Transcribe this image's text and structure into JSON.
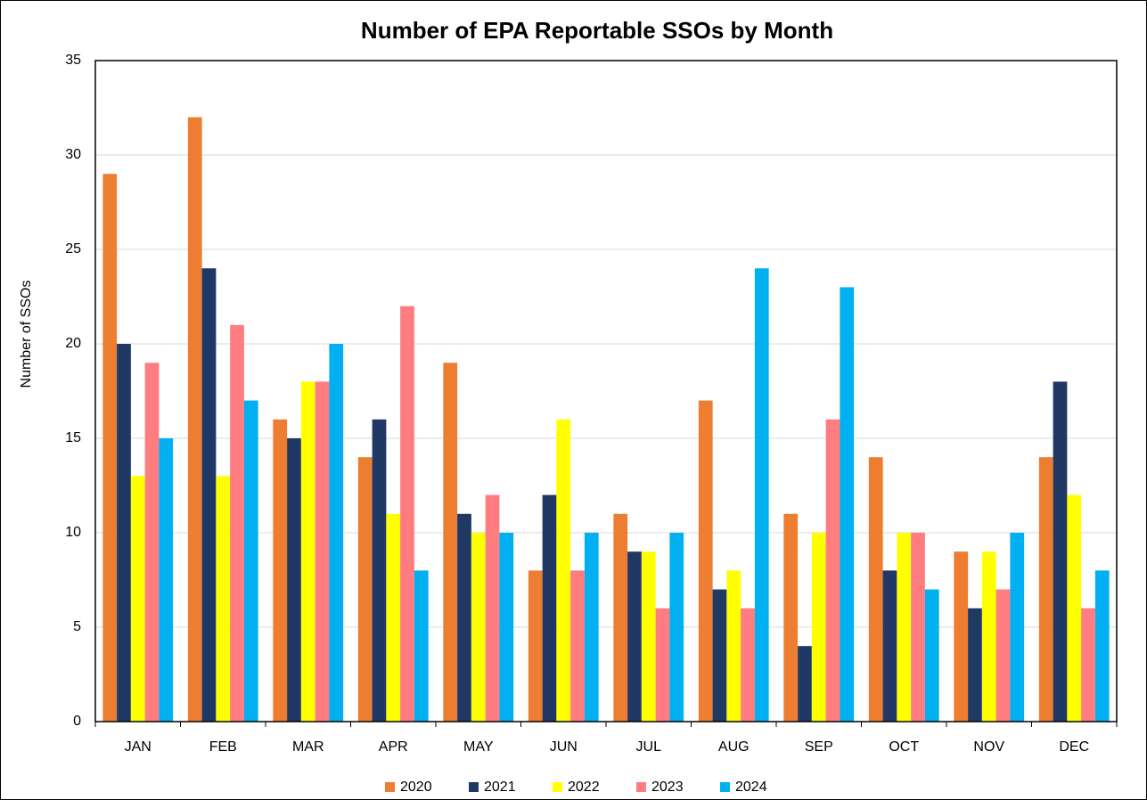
{
  "chart_data": {
    "type": "bar",
    "title": "Number of EPA Reportable SSOs by Month",
    "y_label": "Number of SSOs",
    "categories": [
      "JAN",
      "FEB",
      "MAR",
      "APR",
      "MAY",
      "JUN",
      "JUL",
      "AUG",
      "SEP",
      "OCT",
      "NOV",
      "DEC"
    ],
    "series": [
      {
        "name": "2020",
        "color": "#ED7D31",
        "values": [
          29,
          32,
          16,
          14,
          19,
          8,
          11,
          17,
          11,
          14,
          9,
          14
        ]
      },
      {
        "name": "2021",
        "color": "#203864",
        "values": [
          20,
          24,
          15,
          16,
          11,
          12,
          9,
          7,
          4,
          8,
          6,
          18
        ]
      },
      {
        "name": "2022",
        "color": "#FFFF00",
        "values": [
          13,
          13,
          18,
          11,
          10,
          16,
          9,
          8,
          10,
          10,
          9,
          12
        ]
      },
      {
        "name": "2023",
        "color": "#FF7C80",
        "values": [
          19,
          21,
          18,
          22,
          12,
          8,
          6,
          6,
          16,
          10,
          7,
          6
        ]
      },
      {
        "name": "2024",
        "color": "#00B0F0",
        "values": [
          15,
          17,
          20,
          8,
          10,
          10,
          10,
          24,
          23,
          7,
          10,
          8
        ]
      }
    ],
    "ylim": [
      0,
      35
    ],
    "yticks": [
      0,
      5,
      10,
      15,
      20,
      25,
      30,
      35
    ],
    "grid": true,
    "legend": "bottom"
  }
}
